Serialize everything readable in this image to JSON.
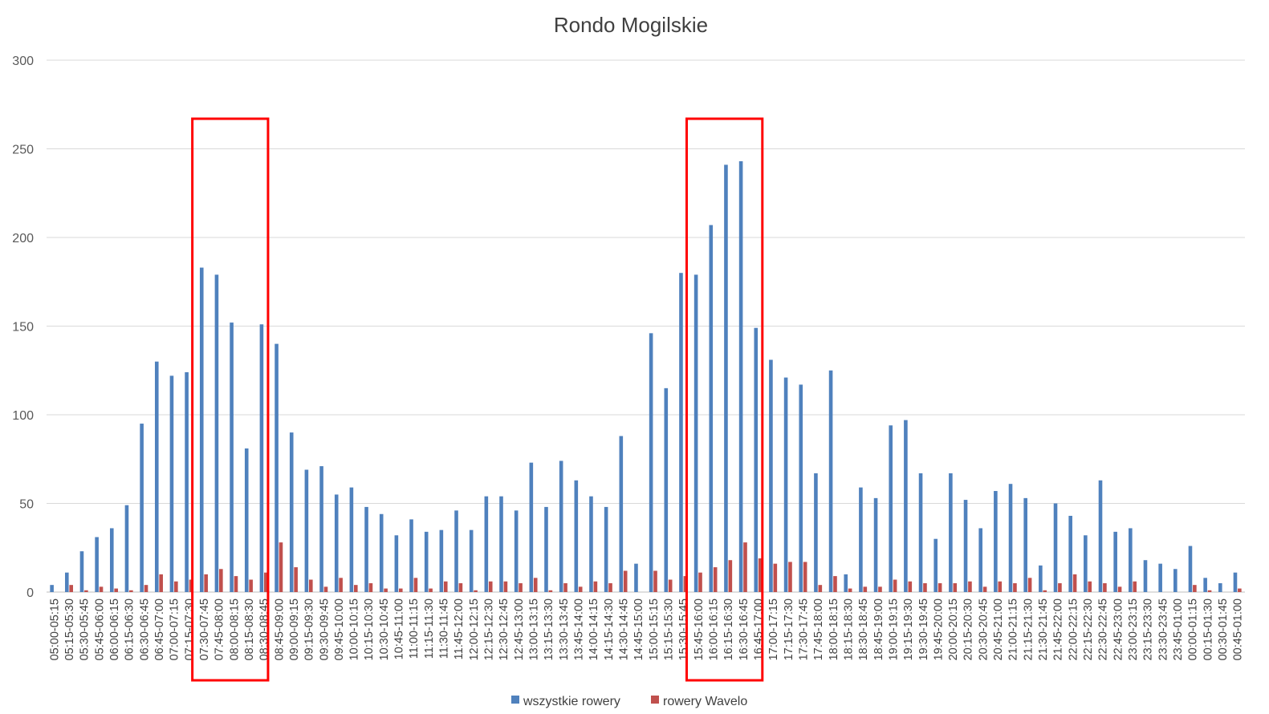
{
  "chart_data": {
    "type": "bar",
    "title": "Rondo Mogilskie",
    "xlabel": "",
    "ylabel": "",
    "ylim": [
      0,
      300
    ],
    "yticks": [
      0,
      50,
      100,
      150,
      200,
      250,
      300
    ],
    "grid": true,
    "legend_position": "bottom",
    "categories": [
      "05:00-05:15",
      "05:15-05:30",
      "05:30-05:45",
      "05:45-06:00",
      "06:00-06:15",
      "06:15-06:30",
      "06:30-06:45",
      "06:45-07:00",
      "07:00-07:15",
      "07:15-07:30",
      "07:30-07:45",
      "07:45-08:00",
      "08:00-08:15",
      "08:15-08:30",
      "08:30-08:45",
      "08:45-09:00",
      "09:00-09:15",
      "09:15-09:30",
      "09:30-09:45",
      "09:45-10:00",
      "10:00-10:15",
      "10:15-10:30",
      "10:30-10:45",
      "10:45-11:00",
      "11:00-11:15",
      "11:15-11:30",
      "11:30-11:45",
      "11:45-12:00",
      "12:00-12:15",
      "12:15-12:30",
      "12:30-12:45",
      "12:45-13:00",
      "13:00-13:15",
      "13:15-13:30",
      "13:30-13:45",
      "13:45-14:00",
      "14:00-14:15",
      "14:15-14:30",
      "14:30-14:45",
      "14:45-15:00",
      "15:00-15:15",
      "15:15-15:30",
      "15:30-15:45",
      "15:45-16:00",
      "16:00-16:15",
      "16:15-16:30",
      "16:30-16:45",
      "16:45-17:00",
      "17:00-17:15",
      "17:15-17:30",
      "17:30-17:45",
      "17:45-18:00",
      "18:00-18:15",
      "18:15-18:30",
      "18:30-18:45",
      "18:45-19:00",
      "19:00-19:15",
      "19:15-19:30",
      "19:30-19:45",
      "19:45-20:00",
      "20:00-20:15",
      "20:15-20:30",
      "20:30-20:45",
      "20:45-21:00",
      "21:00-21:15",
      "21:15-21:30",
      "21:30-21:45",
      "21:45-22:00",
      "22:00-22:15",
      "22:15-22:30",
      "22:30-22:45",
      "22:45-23:00",
      "23:00-23:15",
      "23:15-23:30",
      "23:30-23:45",
      "23:45-01:00",
      "00:00-01:15",
      "00:15-01:30",
      "00:30-01:45",
      "00:45-01:00"
    ],
    "series": [
      {
        "name": "wszystkie rowery",
        "color": "#4f81bd",
        "values": [
          4,
          11,
          23,
          31,
          36,
          49,
          95,
          130,
          122,
          124,
          183,
          179,
          152,
          81,
          151,
          140,
          90,
          69,
          71,
          55,
          59,
          48,
          44,
          32,
          41,
          34,
          35,
          46,
          35,
          54,
          54,
          46,
          73,
          48,
          74,
          63,
          54,
          48,
          88,
          16,
          146,
          115,
          180,
          179,
          207,
          241,
          243,
          149,
          131,
          121,
          117,
          67,
          125,
          10,
          59,
          53,
          94,
          97,
          67,
          30,
          67,
          52,
          36,
          57,
          61,
          53,
          15,
          50,
          43,
          32,
          63,
          34,
          36,
          18,
          16,
          13,
          26,
          8,
          5,
          11
        ]
      },
      {
        "name": "rowery Wavelo",
        "color": "#c0504d",
        "values": [
          0,
          4,
          1,
          3,
          2,
          1,
          4,
          10,
          6,
          7,
          10,
          13,
          9,
          7,
          11,
          28,
          14,
          7,
          3,
          8,
          4,
          5,
          2,
          2,
          8,
          2,
          6,
          5,
          1,
          6,
          6,
          5,
          8,
          1,
          5,
          3,
          6,
          5,
          12,
          0,
          12,
          7,
          9,
          11,
          14,
          18,
          28,
          19,
          16,
          17,
          17,
          4,
          9,
          2,
          3,
          3,
          7,
          6,
          5,
          5,
          5,
          6,
          3,
          6,
          5,
          8,
          1,
          5,
          10,
          6,
          5,
          3,
          6,
          0,
          0,
          0,
          4,
          1,
          0,
          2
        ]
      }
    ],
    "annotations": [
      {
        "type": "highlight-box",
        "color": "#ff0000",
        "from_category": "07:30-07:45",
        "to_category": "08:30-08:45"
      },
      {
        "type": "highlight-box",
        "color": "#ff0000",
        "from_category": "15:45-16:00",
        "to_category": "16:45-17:00"
      }
    ]
  }
}
